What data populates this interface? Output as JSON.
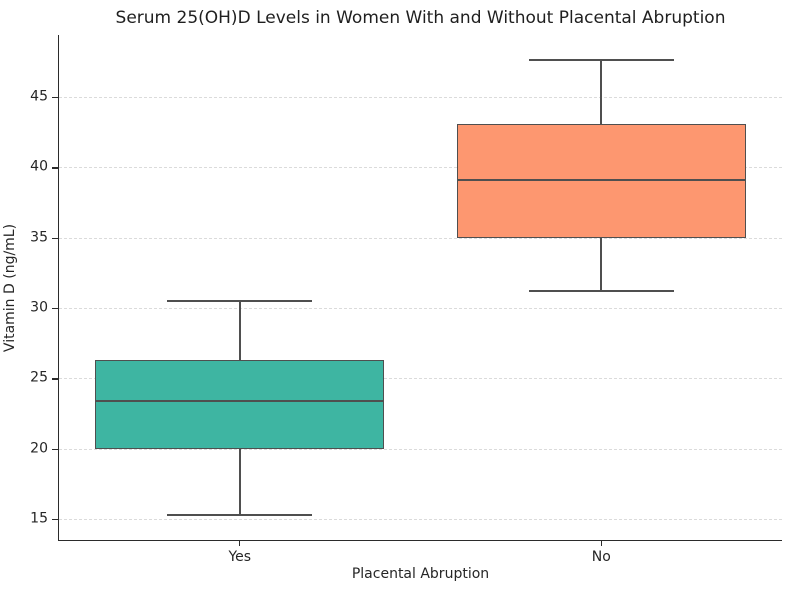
{
  "chart_data": {
    "type": "box",
    "title": "Serum 25(OH)D Levels in Women With and Without Placental Abruption",
    "xlabel": "Placental Abruption",
    "ylabel": "Vitamin D (ng/mL)",
    "categories": [
      "Yes",
      "No"
    ],
    "yticks": [
      15,
      20,
      25,
      30,
      35,
      40,
      45
    ],
    "ylim": [
      13.5,
      49.4
    ],
    "grid": "horizontal-dashed",
    "legend": "none",
    "boxes": [
      {
        "category": "Yes",
        "whisker_low": 15.3,
        "q1": 20.0,
        "median": 23.4,
        "q3": 26.3,
        "whisker_high": 30.5,
        "fill_color": "#3EB5A2"
      },
      {
        "category": "No",
        "whisker_low": 31.2,
        "q1": 35.0,
        "median": 39.1,
        "q3": 43.1,
        "whisker_high": 47.6,
        "fill_color": "#FD9770"
      }
    ],
    "colors": {
      "box_edge": "#4F4F4F",
      "grid_color": "#DBDBDB",
      "spine_color": "#2B2B2B",
      "text_color": "#262626",
      "background": "#FFFFFF"
    }
  }
}
